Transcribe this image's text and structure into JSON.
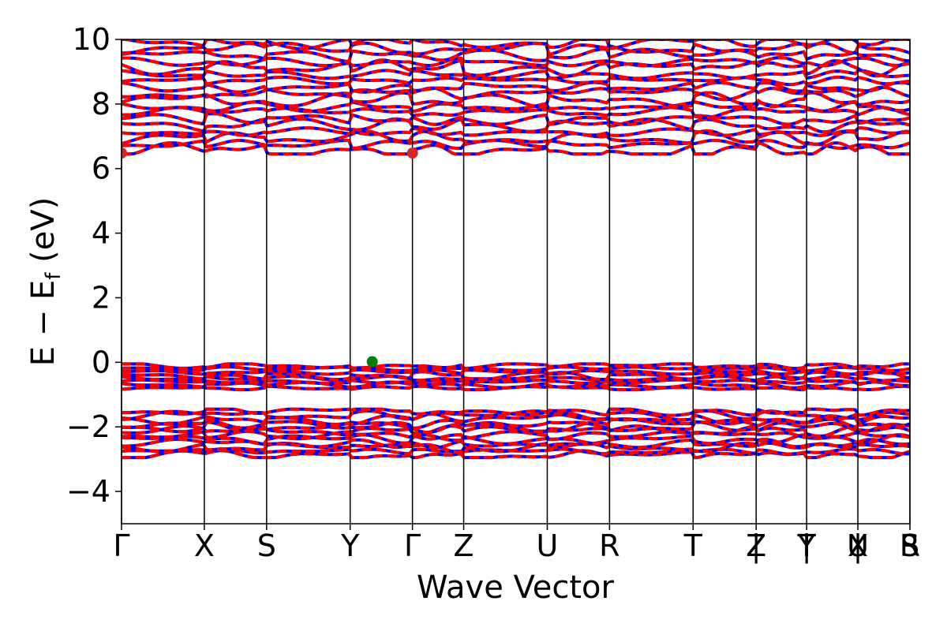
{
  "chart_data": {
    "type": "line",
    "title": "",
    "xlabel": "Wave Vector",
    "ylabel": "E − E",
    "ylabel_sub": "f",
    "ylabel_unit": " (eV)",
    "ylim": [
      -5,
      10
    ],
    "y_ticks": [
      -4,
      -2,
      0,
      2,
      4,
      6,
      8,
      10
    ],
    "y_tick_labels": [
      "−4",
      "−2",
      "0",
      "2",
      "4",
      "6",
      "8",
      "10"
    ],
    "x_range": [
      0,
      1
    ],
    "kpoints": [
      {
        "label": "Γ",
        "pos": 0.0
      },
      {
        "label": "X",
        "pos": 0.105
      },
      {
        "label": "S",
        "pos": 0.184
      },
      {
        "label": "Y",
        "pos": 0.29
      },
      {
        "label": "Γ",
        "pos": 0.369
      },
      {
        "label": "Z",
        "pos": 0.434
      },
      {
        "label": "U",
        "pos": 0.54
      },
      {
        "label": "R",
        "pos": 0.619
      },
      {
        "label": "T",
        "pos": 0.725
      },
      {
        "label": "Z",
        "pos": 0.805
      },
      {
        "label": "|",
        "pos": 0.805
      },
      {
        "label": "Y",
        "pos": 0.869
      },
      {
        "label": "T",
        "pos": 0.869
      },
      {
        "label": "|",
        "pos": 0.869
      },
      {
        "label": "U",
        "pos": 0.934
      },
      {
        "label": "X",
        "pos": 0.934
      },
      {
        "label": "|",
        "pos": 0.934
      },
      {
        "label": "S",
        "pos": 1.0
      },
      {
        "label": "R",
        "pos": 1.0
      }
    ],
    "series_colors": {
      "spin_up": "#0000ff",
      "spin_down": "#ff0000"
    },
    "band_groups": [
      {
        "name": "",
        "energy_range": [
          -2.95,
          -1.45
        ],
        "count": 12
      },
      {
        "name": "",
        "energy_range": [
          -0.85,
          -0.05
        ],
        "count": 8
      },
      {
        "name": "",
        "energy_range": [
          6.45,
          10.0
        ],
        "count": 18
      }
    ],
    "markers": [
      {
        "name": "CBM",
        "x": 0.0,
        "y": 6.48,
        "color": "#d62728"
      },
      {
        "name": "CBM",
        "x": 0.369,
        "y": 6.48,
        "color": "#d62728"
      },
      {
        "name": "VBM",
        "x": 0.318,
        "y": 0.02,
        "color": "#008000"
      }
    ],
    "grid": false,
    "legend": "none"
  }
}
